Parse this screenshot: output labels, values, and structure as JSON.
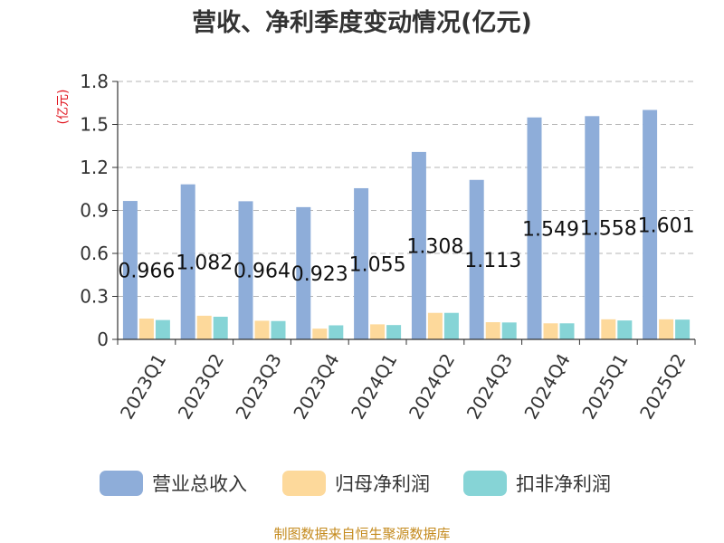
{
  "title": "营收、净利季度变动情况(亿元)",
  "source": "制图数据来自恒生聚源数据库",
  "chart_data": {
    "type": "bar",
    "title": "营收、净利季度变动情况(亿元)",
    "ylabel": "(亿元)",
    "xlabel": "",
    "ylim": [
      0,
      1.8
    ],
    "yticks": [
      "0",
      "0.3",
      "0.6",
      "0.9",
      "1.2",
      "1.5",
      "1.8"
    ],
    "grid": true,
    "legend_position": "bottom",
    "categories": [
      "2023Q1",
      "2023Q2",
      "2023Q3",
      "2023Q4",
      "2024Q1",
      "2024Q2",
      "2024Q3",
      "2024Q4",
      "2025Q1",
      "2025Q2"
    ],
    "series": [
      {
        "name": "营业总收入",
        "color": "#8eadd9",
        "values": [
          0.966,
          1.082,
          0.964,
          0.923,
          1.055,
          1.308,
          1.113,
          1.549,
          1.558,
          1.601
        ],
        "labels": [
          "0.966",
          "1.082",
          "0.964",
          "0.923",
          "1.055",
          "1.308",
          "1.113",
          "1.549",
          "1.558",
          "1.601"
        ]
      },
      {
        "name": "归母净利润",
        "color": "#fdd99b",
        "values": [
          0.145,
          0.165,
          0.13,
          0.075,
          0.105,
          0.185,
          0.12,
          0.112,
          0.14,
          0.14
        ]
      },
      {
        "name": "扣非净利润",
        "color": "#86d4d6",
        "values": [
          0.135,
          0.158,
          0.128,
          0.098,
          0.1,
          0.185,
          0.118,
          0.112,
          0.132,
          0.138
        ]
      }
    ]
  }
}
